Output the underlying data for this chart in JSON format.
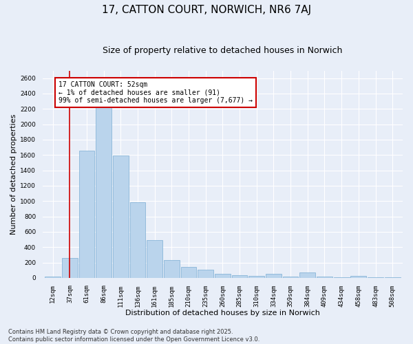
{
  "title": "17, CATTON COURT, NORWICH, NR6 7AJ",
  "subtitle": "Size of property relative to detached houses in Norwich",
  "xlabel": "Distribution of detached houses by size in Norwich",
  "ylabel": "Number of detached properties",
  "categories": [
    "12sqm",
    "37sqm",
    "61sqm",
    "86sqm",
    "111sqm",
    "136sqm",
    "161sqm",
    "185sqm",
    "210sqm",
    "235sqm",
    "260sqm",
    "285sqm",
    "310sqm",
    "334sqm",
    "359sqm",
    "384sqm",
    "409sqm",
    "434sqm",
    "458sqm",
    "483sqm",
    "508sqm"
  ],
  "values": [
    20,
    260,
    1660,
    2220,
    1590,
    980,
    490,
    230,
    145,
    105,
    55,
    35,
    25,
    55,
    20,
    70,
    20,
    10,
    25,
    10,
    10
  ],
  "bar_color": "#bad4ec",
  "bar_edge_color": "#7aadd4",
  "vline_x": 1,
  "vline_color": "#cc0000",
  "annotation_text": "17 CATTON COURT: 52sqm\n← 1% of detached houses are smaller (91)\n99% of semi-detached houses are larger (7,677) →",
  "annotation_box_color": "#ffffff",
  "annotation_box_edge": "#cc0000",
  "ylim": [
    0,
    2700
  ],
  "yticks": [
    0,
    200,
    400,
    600,
    800,
    1000,
    1200,
    1400,
    1600,
    1800,
    2000,
    2200,
    2400,
    2600
  ],
  "footer_line1": "Contains HM Land Registry data © Crown copyright and database right 2025.",
  "footer_line2": "Contains public sector information licensed under the Open Government Licence v3.0.",
  "bg_color": "#e8eef8",
  "plot_bg_color": "#e8eef8",
  "grid_color": "#ffffff",
  "title_fontsize": 11,
  "subtitle_fontsize": 9,
  "axis_label_fontsize": 8,
  "tick_fontsize": 6.5,
  "annotation_fontsize": 7,
  "footer_fontsize": 6
}
